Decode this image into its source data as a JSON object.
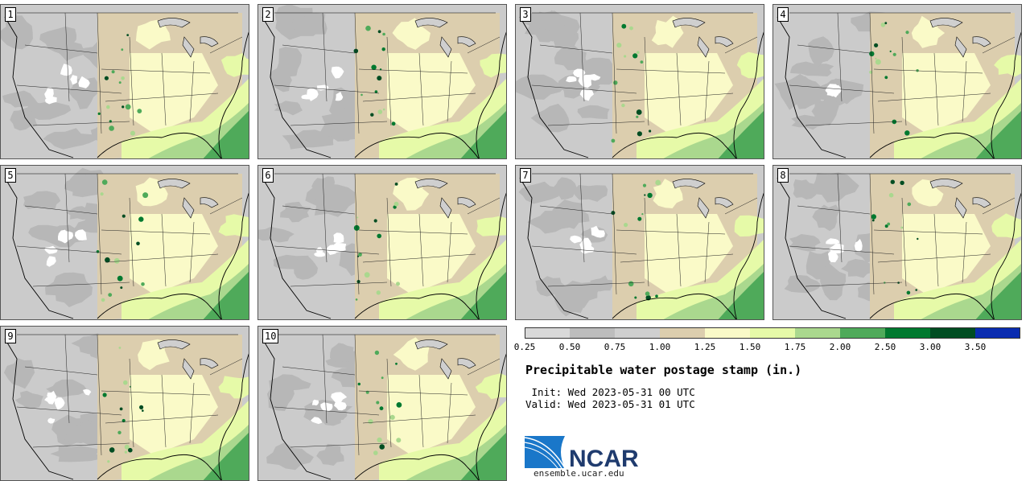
{
  "panels": [
    {
      "label": "1"
    },
    {
      "label": "2"
    },
    {
      "label": "3"
    },
    {
      "label": "4"
    },
    {
      "label": "5"
    },
    {
      "label": "6"
    },
    {
      "label": "7"
    },
    {
      "label": "8"
    },
    {
      "label": "9"
    },
    {
      "label": "10"
    }
  ],
  "legend": {
    "ticks": [
      "0.25",
      "0.50",
      "0.75",
      "1.00",
      "1.25",
      "1.50",
      "1.75",
      "2.00",
      "2.50",
      "3.00",
      "3.50"
    ],
    "colors": [
      "#d9d9d9",
      "#bdbdbd",
      "#cfcfcf",
      "#dcceae",
      "#fafac8",
      "#e6faa8",
      "#aad88e",
      "#4faa5a",
      "#00792f",
      "#004d22",
      "#0a2cb0"
    ]
  },
  "title": "Precipitable water postage stamp (in.)",
  "init": " Init: Wed 2023-05-31 00 UTC",
  "valid": "Valid: Wed 2023-05-31 01 UTC",
  "logo": {
    "text": "NCAR",
    "color": "#1f3b6e"
  },
  "site": "ensemble.ucar.edu"
}
